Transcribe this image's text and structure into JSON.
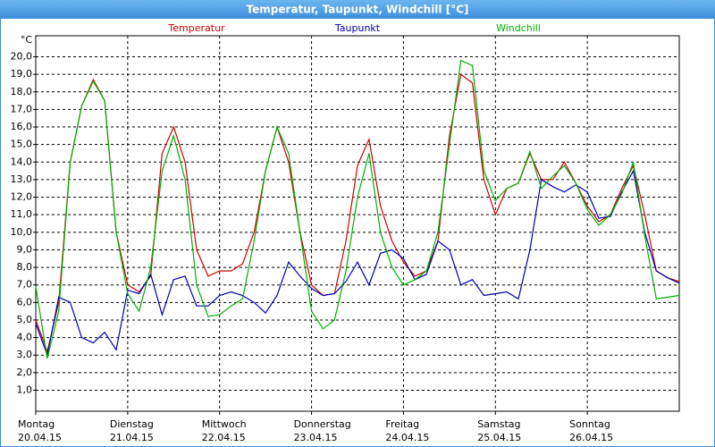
{
  "chart_data": {
    "type": "line",
    "title": "Temperatur, Taupunkt, Windchill [°C]",
    "y_unit": "°C",
    "x": [
      0,
      3,
      6,
      9,
      12,
      15,
      18,
      21,
      24,
      27,
      30,
      33,
      36,
      39,
      42,
      45,
      48,
      51,
      54,
      57,
      60,
      63,
      66,
      69,
      72,
      75,
      78,
      81,
      84,
      87,
      90,
      93,
      96,
      99,
      102,
      105,
      108,
      111,
      114,
      117,
      120,
      123,
      126,
      129,
      132,
      135,
      138,
      141,
      144,
      147,
      150,
      153,
      156,
      159,
      162,
      165,
      168
    ],
    "series": [
      {
        "name": "Temperatur",
        "color": "#d00000",
        "values": [
          5.0,
          3.2,
          6.0,
          14.0,
          17.2,
          18.7,
          17.5,
          10.0,
          7.0,
          6.6,
          7.5,
          14.5,
          16.0,
          14.0,
          9.0,
          7.5,
          7.8,
          7.8,
          8.2,
          10.0,
          13.5,
          16.0,
          14.0,
          10.0,
          7.0,
          6.4,
          6.5,
          9.5,
          13.8,
          15.3,
          11.5,
          9.5,
          8.3,
          7.5,
          7.8,
          9.5,
          15.5,
          19.0,
          18.5,
          13.0,
          11.0,
          12.5,
          12.8,
          14.5,
          13.0,
          13.0,
          14.0,
          12.8,
          11.5,
          10.6,
          11.0,
          12.5,
          13.8,
          11.0,
          7.8,
          7.4,
          7.2
        ]
      },
      {
        "name": "Taupunkt",
        "color": "#0000b0",
        "values": [
          4.8,
          3.0,
          6.3,
          6.0,
          4.0,
          3.7,
          4.3,
          3.3,
          6.7,
          6.5,
          7.6,
          5.3,
          7.3,
          7.5,
          5.8,
          5.8,
          6.4,
          6.6,
          6.4,
          6.0,
          5.4,
          6.4,
          8.3,
          7.5,
          6.8,
          6.4,
          6.5,
          7.2,
          8.3,
          7.0,
          8.8,
          9.0,
          8.5,
          7.3,
          7.6,
          9.5,
          9.0,
          7.0,
          7.3,
          6.4,
          6.5,
          6.6,
          6.2,
          9.0,
          13.0,
          12.6,
          12.3,
          12.7,
          12.3,
          10.8,
          10.9,
          12.3,
          13.5,
          10.0,
          7.8,
          7.4,
          7.1
        ]
      },
      {
        "name": "Windchill",
        "color": "#00b000",
        "values": [
          6.9,
          2.8,
          5.5,
          14.0,
          17.2,
          18.6,
          17.5,
          10.0,
          6.5,
          5.5,
          8.0,
          13.5,
          15.5,
          13.0,
          7.0,
          5.2,
          5.3,
          5.8,
          6.2,
          9.5,
          13.5,
          16.0,
          14.5,
          10.0,
          5.5,
          4.5,
          5.0,
          7.8,
          12.0,
          14.5,
          10.0,
          8.0,
          7.0,
          7.3,
          7.8,
          10.0,
          15.0,
          19.8,
          19.5,
          13.5,
          11.8,
          12.5,
          12.8,
          14.6,
          12.5,
          13.2,
          13.8,
          12.8,
          11.3,
          10.4,
          11.0,
          12.2,
          14.0,
          9.8,
          6.2,
          6.3,
          6.4
        ]
      }
    ],
    "xlim": [
      0,
      168
    ],
    "xticks": [
      {
        "value": 0,
        "label": "Montag",
        "date": "20.04.15"
      },
      {
        "value": 24,
        "label": "Dienstag",
        "date": "21.04.15"
      },
      {
        "value": 48,
        "label": "Mittwoch",
        "date": "22.04.15"
      },
      {
        "value": 72,
        "label": "Donnerstag",
        "date": "23.04.15"
      },
      {
        "value": 96,
        "label": "Freitag",
        "date": "24.04.15"
      },
      {
        "value": 120,
        "label": "Samstag",
        "date": "25.04.15"
      },
      {
        "value": 144,
        "label": "Sonntag",
        "date": "26.04.15"
      }
    ],
    "ylim": [
      -0.2,
      21.2
    ],
    "yticks": [
      {
        "value": 1,
        "label": "1,0"
      },
      {
        "value": 2,
        "label": "2,0"
      },
      {
        "value": 3,
        "label": "3,0"
      },
      {
        "value": 4,
        "label": "4,0"
      },
      {
        "value": 5,
        "label": "5,0"
      },
      {
        "value": 6,
        "label": "6,0"
      },
      {
        "value": 7,
        "label": "7,0"
      },
      {
        "value": 8,
        "label": "8,0"
      },
      {
        "value": 9,
        "label": "9,0"
      },
      {
        "value": 10,
        "label": "10,0"
      },
      {
        "value": 11,
        "label": "11,0"
      },
      {
        "value": 12,
        "label": "12,0"
      },
      {
        "value": 13,
        "label": "13,0"
      },
      {
        "value": 14,
        "label": "14,0"
      },
      {
        "value": 15,
        "label": "15,0"
      },
      {
        "value": 16,
        "label": "16,0"
      },
      {
        "value": 17,
        "label": "17,0"
      },
      {
        "value": 18,
        "label": "18,0"
      },
      {
        "value": 19,
        "label": "19,0"
      },
      {
        "value": 20,
        "label": "20,0"
      }
    ],
    "grid": true,
    "legend": "top"
  }
}
